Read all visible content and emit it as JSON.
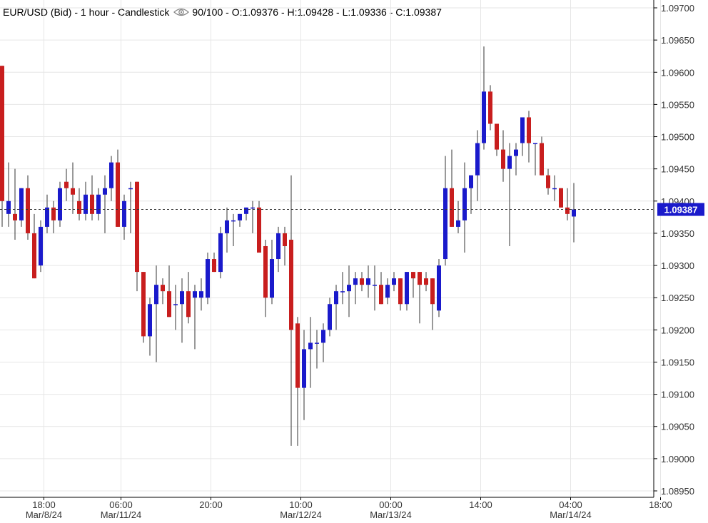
{
  "header": {
    "title": "EUR/USD (Bid) - 1 hour - Candlestick",
    "visibility_icon": "eye-icon",
    "count": "90/100",
    "ohlc": "O:1.09376 - H:1.09428 - L:1.09336 - C:1.09387"
  },
  "colors": {
    "up": "#1a1acb",
    "down": "#c81e1e",
    "grid": "#e6e6e6",
    "axis": "#000000",
    "price_tag": "#1a1acb"
  },
  "chart_data": {
    "type": "candlestick",
    "ylim": [
      1.0894,
      1.0972
    ],
    "y_ticks": [
      "1.08950",
      "1.09000",
      "1.09050",
      "1.09100",
      "1.09150",
      "1.09200",
      "1.09250",
      "1.09300",
      "1.09350",
      "1.09400",
      "1.09450",
      "1.09500",
      "1.09550",
      "1.09600",
      "1.09650",
      "1.09700"
    ],
    "x_ticks": [
      {
        "time": "18:00",
        "date": "Mar/8/24",
        "index": 3
      },
      {
        "time": "06:00",
        "date": "Mar/11/24",
        "index": 15
      },
      {
        "time": "20:00",
        "date": "",
        "index": 29
      },
      {
        "time": "10:00",
        "date": "Mar/12/24",
        "index": 43
      },
      {
        "time": "00:00",
        "date": "Mar/13/24",
        "index": 57
      },
      {
        "time": "14:00",
        "date": "",
        "index": 71
      },
      {
        "time": "04:00",
        "date": "Mar/14/24",
        "index": 85
      },
      {
        "time": "18:00",
        "date": "",
        "index": 99
      }
    ],
    "last_price": "1.09387",
    "last_value": 1.09387,
    "grid": true,
    "candles": [
      {
        "o": 1.0961,
        "h": 1.0961,
        "l": 1.0936,
        "c": 1.094
      },
      {
        "o": 1.0938,
        "h": 1.0946,
        "l": 1.0936,
        "c": 1.094
      },
      {
        "o": 1.0938,
        "h": 1.0945,
        "l": 1.0934,
        "c": 1.0937
      },
      {
        "o": 1.0937,
        "h": 1.0942,
        "l": 1.0936,
        "c": 1.0942
      },
      {
        "o": 1.0942,
        "h": 1.0944,
        "l": 1.0934,
        "c": 1.0935
      },
      {
        "o": 1.0935,
        "h": 1.0938,
        "l": 1.0928,
        "c": 1.0928
      },
      {
        "o": 1.093,
        "h": 1.0937,
        "l": 1.0929,
        "c": 1.0936
      },
      {
        "o": 1.0936,
        "h": 1.0941,
        "l": 1.0935,
        "c": 1.0939
      },
      {
        "o": 1.0939,
        "h": 1.094,
        "l": 1.0935,
        "c": 1.0937
      },
      {
        "o": 1.0937,
        "h": 1.0943,
        "l": 1.0936,
        "c": 1.0942
      },
      {
        "o": 1.0943,
        "h": 1.0945,
        "l": 1.094,
        "c": 1.0942
      },
      {
        "o": 1.0942,
        "h": 1.0946,
        "l": 1.0938,
        "c": 1.0941
      },
      {
        "o": 1.094,
        "h": 1.0942,
        "l": 1.0937,
        "c": 1.0938
      },
      {
        "o": 1.0938,
        "h": 1.0943,
        "l": 1.0937,
        "c": 1.0941
      },
      {
        "o": 1.0941,
        "h": 1.0944,
        "l": 1.0937,
        "c": 1.0938
      },
      {
        "o": 1.0938,
        "h": 1.0942,
        "l": 1.0937,
        "c": 1.0941
      },
      {
        "o": 1.0941,
        "h": 1.0944,
        "l": 1.0935,
        "c": 1.0942
      },
      {
        "o": 1.0942,
        "h": 1.0947,
        "l": 1.094,
        "c": 1.0946
      },
      {
        "o": 1.0946,
        "h": 1.0948,
        "l": 1.0936,
        "c": 1.0936
      },
      {
        "o": 1.0936,
        "h": 1.0941,
        "l": 1.0934,
        "c": 1.094
      },
      {
        "o": 1.0942,
        "h": 1.0943,
        "l": 1.0935,
        "c": 1.0942
      },
      {
        "o": 1.0943,
        "h": 1.0943,
        "l": 1.0926,
        "c": 1.0929
      },
      {
        "o": 1.0929,
        "h": 1.0929,
        "l": 1.0918,
        "c": 1.0919
      },
      {
        "o": 1.0919,
        "h": 1.0925,
        "l": 1.0916,
        "c": 1.0924
      },
      {
        "o": 1.0924,
        "h": 1.093,
        "l": 1.0915,
        "c": 1.0927
      },
      {
        "o": 1.0927,
        "h": 1.0928,
        "l": 1.0924,
        "c": 1.0926
      },
      {
        "o": 1.0926,
        "h": 1.093,
        "l": 1.0922,
        "c": 1.0922
      },
      {
        "o": 1.0924,
        "h": 1.0927,
        "l": 1.092,
        "c": 1.0924
      },
      {
        "o": 1.0924,
        "h": 1.0928,
        "l": 1.0918,
        "c": 1.0926
      },
      {
        "o": 1.0926,
        "h": 1.0929,
        "l": 1.0921,
        "c": 1.0922
      },
      {
        "o": 1.0925,
        "h": 1.0927,
        "l": 1.0917,
        "c": 1.0926
      },
      {
        "o": 1.0925,
        "h": 1.0928,
        "l": 1.0923,
        "c": 1.0926
      },
      {
        "o": 1.0925,
        "h": 1.0932,
        "l": 1.0924,
        "c": 1.0931
      },
      {
        "o": 1.0931,
        "h": 1.0932,
        "l": 1.0929,
        "c": 1.0929
      },
      {
        "o": 1.0929,
        "h": 1.0936,
        "l": 1.0928,
        "c": 1.0935
      },
      {
        "o": 1.0935,
        "h": 1.0939,
        "l": 1.0932,
        "c": 1.0937
      },
      {
        "o": 1.0937,
        "h": 1.0938,
        "l": 1.0933,
        "c": 1.0937
      },
      {
        "o": 1.0937,
        "h": 1.0938,
        "l": 1.0936,
        "c": 1.0938
      },
      {
        "o": 1.0938,
        "h": 1.0939,
        "l": 1.0937,
        "c": 1.0939
      },
      {
        "o": 1.0939,
        "h": 1.094,
        "l": 1.0935,
        "c": 1.0939
      },
      {
        "o": 1.0939,
        "h": 1.094,
        "l": 1.0932,
        "c": 1.0932
      },
      {
        "o": 1.0933,
        "h": 1.0934,
        "l": 1.0922,
        "c": 1.0925
      },
      {
        "o": 1.0925,
        "h": 1.0934,
        "l": 1.0924,
        "c": 1.0931
      },
      {
        "o": 1.0931,
        "h": 1.0936,
        "l": 1.0929,
        "c": 1.0935
      },
      {
        "o": 1.0935,
        "h": 1.0936,
        "l": 1.093,
        "c": 1.0933
      },
      {
        "o": 1.0934,
        "h": 1.0944,
        "l": 1.0902,
        "c": 1.092
      },
      {
        "o": 1.0921,
        "h": 1.0922,
        "l": 1.0902,
        "c": 1.0911
      },
      {
        "o": 1.0911,
        "h": 1.092,
        "l": 1.0906,
        "c": 1.0917
      },
      {
        "o": 1.0917,
        "h": 1.0922,
        "l": 1.0911,
        "c": 1.0918
      },
      {
        "o": 1.0918,
        "h": 1.092,
        "l": 1.0914,
        "c": 1.0918
      },
      {
        "o": 1.0918,
        "h": 1.0921,
        "l": 1.0915,
        "c": 1.092
      },
      {
        "o": 1.092,
        "h": 1.0925,
        "l": 1.0919,
        "c": 1.0924
      },
      {
        "o": 1.0924,
        "h": 1.0927,
        "l": 1.092,
        "c": 1.0926
      },
      {
        "o": 1.0926,
        "h": 1.0929,
        "l": 1.0924,
        "c": 1.0926
      },
      {
        "o": 1.0926,
        "h": 1.093,
        "l": 1.0922,
        "c": 1.0927
      },
      {
        "o": 1.0927,
        "h": 1.0929,
        "l": 1.0924,
        "c": 1.0928
      },
      {
        "o": 1.0928,
        "h": 1.0929,
        "l": 1.0926,
        "c": 1.0927
      },
      {
        "o": 1.0927,
        "h": 1.093,
        "l": 1.0925,
        "c": 1.0928
      },
      {
        "o": 1.0927,
        "h": 1.093,
        "l": 1.0923,
        "c": 1.0927
      },
      {
        "o": 1.0927,
        "h": 1.0929,
        "l": 1.0924,
        "c": 1.0924
      },
      {
        "o": 1.0925,
        "h": 1.0928,
        "l": 1.0924,
        "c": 1.0927
      },
      {
        "o": 1.0927,
        "h": 1.0929,
        "l": 1.0926,
        "c": 1.0928
      },
      {
        "o": 1.0928,
        "h": 1.0928,
        "l": 1.0923,
        "c": 1.0924
      },
      {
        "o": 1.0924,
        "h": 1.0929,
        "l": 1.0923,
        "c": 1.0929
      },
      {
        "o": 1.0929,
        "h": 1.0929,
        "l": 1.0925,
        "c": 1.0928
      },
      {
        "o": 1.0929,
        "h": 1.0929,
        "l": 1.0921,
        "c": 1.0927
      },
      {
        "o": 1.0928,
        "h": 1.0929,
        "l": 1.0926,
        "c": 1.0927
      },
      {
        "o": 1.0928,
        "h": 1.0928,
        "l": 1.092,
        "c": 1.0924
      },
      {
        "o": 1.0923,
        "h": 1.0931,
        "l": 1.0922,
        "c": 1.093
      },
      {
        "o": 1.0931,
        "h": 1.0947,
        "l": 1.093,
        "c": 1.0942
      },
      {
        "o": 1.0942,
        "h": 1.0948,
        "l": 1.0936,
        "c": 1.0936
      },
      {
        "o": 1.0936,
        "h": 1.094,
        "l": 1.0935,
        "c": 1.0937
      },
      {
        "o": 1.0937,
        "h": 1.0946,
        "l": 1.0932,
        "c": 1.0942
      },
      {
        "o": 1.0942,
        "h": 1.0944,
        "l": 1.0938,
        "c": 1.0944
      },
      {
        "o": 1.0944,
        "h": 1.0951,
        "l": 1.094,
        "c": 1.0949
      },
      {
        "o": 1.0949,
        "h": 1.0964,
        "l": 1.0948,
        "c": 1.0957
      },
      {
        "o": 1.0957,
        "h": 1.0958,
        "l": 1.0951,
        "c": 1.0952
      },
      {
        "o": 1.0952,
        "h": 1.0952,
        "l": 1.0947,
        "c": 1.0948
      },
      {
        "o": 1.0948,
        "h": 1.0951,
        "l": 1.0943,
        "c": 1.0945
      },
      {
        "o": 1.0945,
        "h": 1.0949,
        "l": 1.0933,
        "c": 1.0947
      },
      {
        "o": 1.0947,
        "h": 1.0949,
        "l": 1.0944,
        "c": 1.0948
      },
      {
        "o": 1.0949,
        "h": 1.0953,
        "l": 1.0947,
        "c": 1.0953
      },
      {
        "o": 1.0953,
        "h": 1.0954,
        "l": 1.0946,
        "c": 1.0949
      },
      {
        "o": 1.0949,
        "h": 1.0949,
        "l": 1.0944,
        "c": 1.0949
      },
      {
        "o": 1.0949,
        "h": 1.095,
        "l": 1.0944,
        "c": 1.0944
      },
      {
        "o": 1.0944,
        "h": 1.0945,
        "l": 1.0941,
        "c": 1.0942
      },
      {
        "o": 1.0942,
        "h": 1.0944,
        "l": 1.094,
        "c": 1.0942
      },
      {
        "o": 1.0942,
        "h": 1.0942,
        "l": 1.0939,
        "c": 1.0939
      },
      {
        "o": 1.0939,
        "h": 1.0942,
        "l": 1.0937,
        "c": 1.0938
      },
      {
        "o": 1.09376,
        "h": 1.09428,
        "l": 1.09336,
        "c": 1.09387
      }
    ]
  }
}
